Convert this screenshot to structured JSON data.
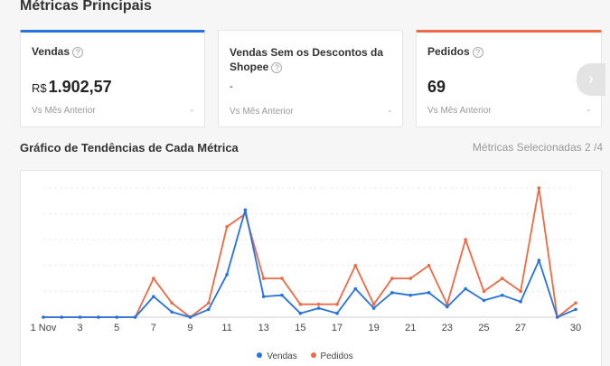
{
  "page_title": "Métricas Principais",
  "cards": [
    {
      "title": "Vendas",
      "currency": "R$",
      "value": "1.902,57",
      "sub": "Vs Mês Anterior",
      "delta": "-",
      "accent": "#2673dd"
    },
    {
      "title": "Vendas Sem os Descontos da Shopee",
      "currency": "",
      "value": "-",
      "sub": "Vs Mês Anterior",
      "delta": "-",
      "accent": ""
    },
    {
      "title": "Pedidos",
      "currency": "",
      "value": "69",
      "sub": "Vs Mês Anterior",
      "delta": "-",
      "accent": "#ee6a46"
    }
  ],
  "help_icon": "?",
  "next_icon": "›",
  "chart_section": {
    "title": "Gráfico de Tendências de Cada Métrica",
    "selected_label": "Métricas Selecionadas 2 /4"
  },
  "chart_data": {
    "type": "line",
    "title": "",
    "x": [
      "1 Nov",
      "2",
      "3",
      "4",
      "5",
      "6",
      "7",
      "8",
      "9",
      "10",
      "11",
      "12",
      "13",
      "14",
      "15",
      "16",
      "17",
      "18",
      "19",
      "20",
      "21",
      "22",
      "23",
      "24",
      "25",
      "26",
      "27",
      "28",
      "29",
      "30"
    ],
    "x_tick_labels": [
      "1 Nov",
      "3",
      "5",
      "7",
      "9",
      "11",
      "13",
      "15",
      "17",
      "19",
      "21",
      "23",
      "25",
      "27",
      "30"
    ],
    "ylim": [
      0,
      10
    ],
    "grid": true,
    "legend_position": "bottom",
    "series": [
      {
        "name": "Vendas",
        "color": "#2673dd",
        "values": [
          0,
          0,
          0,
          0,
          0,
          0,
          1.6,
          0.4,
          0,
          0.6,
          3.3,
          8.3,
          1.6,
          1.7,
          0.3,
          0.7,
          0.3,
          2.2,
          0.7,
          1.9,
          1.7,
          1.9,
          0.8,
          2.2,
          1.3,
          1.7,
          1.2,
          4.4,
          0,
          0.6
        ]
      },
      {
        "name": "Pedidos",
        "color": "#ee6a46",
        "values": [
          0,
          0,
          0,
          0,
          0,
          0,
          3,
          1.1,
          0,
          1.1,
          7,
          8,
          3,
          3,
          1,
          1,
          1,
          4,
          1,
          3,
          3,
          4,
          1,
          6,
          2,
          3,
          2,
          10,
          0,
          1.1
        ]
      }
    ]
  }
}
